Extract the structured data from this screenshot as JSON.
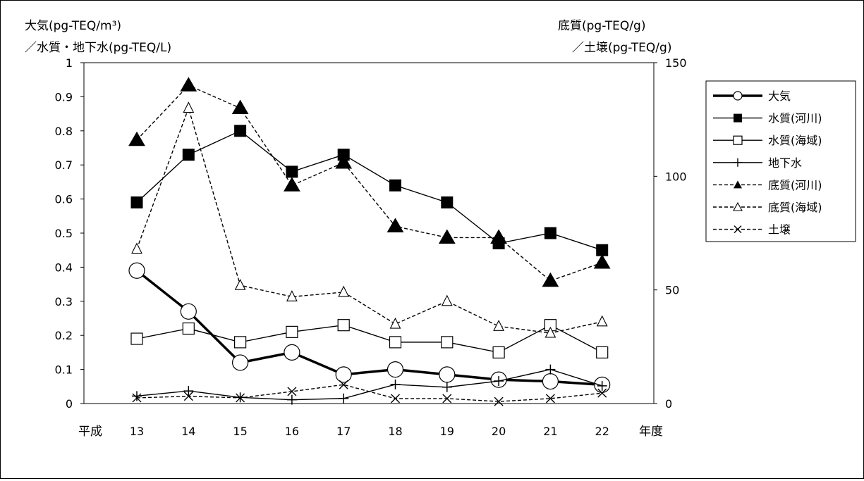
{
  "chart_data": {
    "type": "line",
    "left_axis_label_line1": "大気(pg-TEQ/m³)",
    "left_axis_label_line2": "／水質・地下水(pg-TEQ/L)",
    "right_axis_label_line1": "底質(pg-TEQ/g)",
    "right_axis_label_line2": "／土壌(pg-TEQ/g)",
    "x_prefix": "平成",
    "x_suffix": "年度",
    "categories": [
      "13",
      "14",
      "15",
      "16",
      "17",
      "18",
      "19",
      "20",
      "21",
      "22"
    ],
    "y_left": {
      "min": 0,
      "max": 1,
      "step": 0.1,
      "ticks": [
        "0",
        "0.1",
        "0.2",
        "0.3",
        "0.4",
        "0.5",
        "0.6",
        "0.7",
        "0.8",
        "0.9",
        "1"
      ]
    },
    "y_right": {
      "min": 0,
      "max": 150,
      "step": 50,
      "ticks": [
        "0",
        "50",
        "100",
        "150"
      ]
    },
    "grid": false,
    "legend_position": "right",
    "series": [
      {
        "name": "大気",
        "axis": "left",
        "marker": "circle",
        "dashed": false,
        "bold": true,
        "values": [
          0.39,
          0.27,
          0.12,
          0.15,
          0.085,
          0.1,
          0.085,
          0.07,
          0.065,
          0.055
        ]
      },
      {
        "name": "水質(河川)",
        "axis": "left",
        "marker": "square-filled",
        "dashed": false,
        "bold": false,
        "values": [
          0.59,
          0.73,
          0.8,
          0.68,
          0.73,
          0.64,
          0.59,
          0.47,
          0.5,
          0.45
        ]
      },
      {
        "name": "水質(海域)",
        "axis": "left",
        "marker": "square-open",
        "dashed": false,
        "bold": false,
        "values": [
          0.19,
          0.22,
          0.18,
          0.21,
          0.23,
          0.18,
          0.18,
          0.15,
          0.23,
          0.15
        ]
      },
      {
        "name": "地下水",
        "axis": "left",
        "marker": "plus",
        "dashed": false,
        "bold": false,
        "values": [
          0.022,
          0.037,
          0.018,
          0.011,
          0.015,
          0.056,
          0.048,
          0.066,
          0.1,
          0.052
        ]
      },
      {
        "name": "底質(河川)",
        "axis": "right",
        "marker": "triangle-filled",
        "dashed": true,
        "bold": false,
        "values": [
          116,
          140,
          130,
          96,
          106,
          78,
          73,
          73,
          54,
          62
        ]
      },
      {
        "name": "底質(海域)",
        "axis": "right",
        "marker": "triangle-open",
        "dashed": true,
        "bold": false,
        "values": [
          68,
          130,
          52,
          47,
          49,
          35,
          45,
          34,
          31,
          36
        ]
      },
      {
        "name": "土壌",
        "axis": "right",
        "marker": "cross",
        "dashed": true,
        "bold": false,
        "values": [
          2.5,
          3.2,
          2.5,
          5.3,
          8.3,
          2.2,
          2.2,
          0.9,
          2.2,
          4.6
        ]
      }
    ]
  }
}
